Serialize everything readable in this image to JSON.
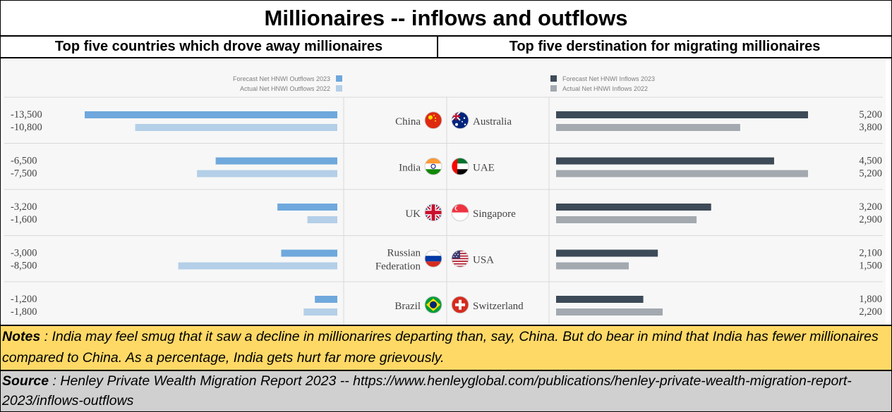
{
  "title": "Millionaires -- inflows and outflows",
  "left_heading": "Top five countries which drove away millionaires",
  "right_heading": "Top five derstination for migrating millionaires",
  "chart_data": [
    {
      "type": "bar",
      "orientation": "horizontal",
      "direction": "leftward",
      "categories": [
        "China",
        "India",
        "UK",
        "Russian Federation",
        "Brazil"
      ],
      "category_lines": [
        [
          "China"
        ],
        [
          "India"
        ],
        [
          "UK"
        ],
        [
          "Russian",
          "Federation"
        ],
        [
          "Brazil"
        ]
      ],
      "series": [
        {
          "name": "Forecast Net HNWI Outflows 2023",
          "color": "#6fa8dc",
          "values": [
            -13500,
            -6500,
            -3200,
            -3000,
            -1200
          ],
          "labels": [
            "-13,500",
            "-6,500",
            "-3,200",
            "-3,000",
            "-1,200"
          ]
        },
        {
          "name": "Actual Net HNWI Outflows 2022",
          "color": "#b4cfe8",
          "values": [
            -10800,
            -7500,
            -1600,
            -8500,
            -1800
          ],
          "labels": [
            "-10,800",
            "-7,500",
            "-1,600",
            "-8,500",
            "-1,800"
          ]
        }
      ],
      "xlim": [
        -13500,
        0
      ],
      "legend": "top-right",
      "grid": false
    },
    {
      "type": "bar",
      "orientation": "horizontal",
      "direction": "rightward",
      "categories": [
        "Australia",
        "UAE",
        "Singapore",
        "USA",
        "Switzerland"
      ],
      "series": [
        {
          "name": "Forecast Net HNWI Inflows 2023",
          "color": "#3d4a57",
          "values": [
            5200,
            4500,
            3200,
            2100,
            1800
          ],
          "labels": [
            "5,200",
            "4,500",
            "3,200",
            "2,100",
            "1,800"
          ]
        },
        {
          "name": "Actual Net HNWI Inflows 2022",
          "color": "#a3a9af",
          "values": [
            3800,
            5200,
            2900,
            1500,
            2200
          ],
          "labels": [
            "3,800",
            "5,200",
            "2,900",
            "1,500",
            "2,200"
          ]
        }
      ],
      "xlim": [
        0,
        5200
      ],
      "legend": "top-left",
      "grid": false
    }
  ],
  "flags": {
    "left": [
      "china-flag",
      "india-flag",
      "uk-flag",
      "russia-flag",
      "brazil-flag"
    ],
    "right": [
      "australia-flag",
      "uae-flag",
      "singapore-flag",
      "usa-flag",
      "switzerland-flag"
    ]
  },
  "notes": {
    "label": "Notes",
    "text": " : India may feel smug that it saw a decline in millionarires departing than, say, China.  But do bear in mind that India has fewer millionaires compared to China.  As a percentage, India gets hurt far more grievously."
  },
  "source": {
    "label": "Source",
    "text": " : Henley Private Wealth Migration Report 2023 -- https://www.henleyglobal.com/publications/henley-private-wealth-migration-report-2023/inflows-outflows"
  }
}
